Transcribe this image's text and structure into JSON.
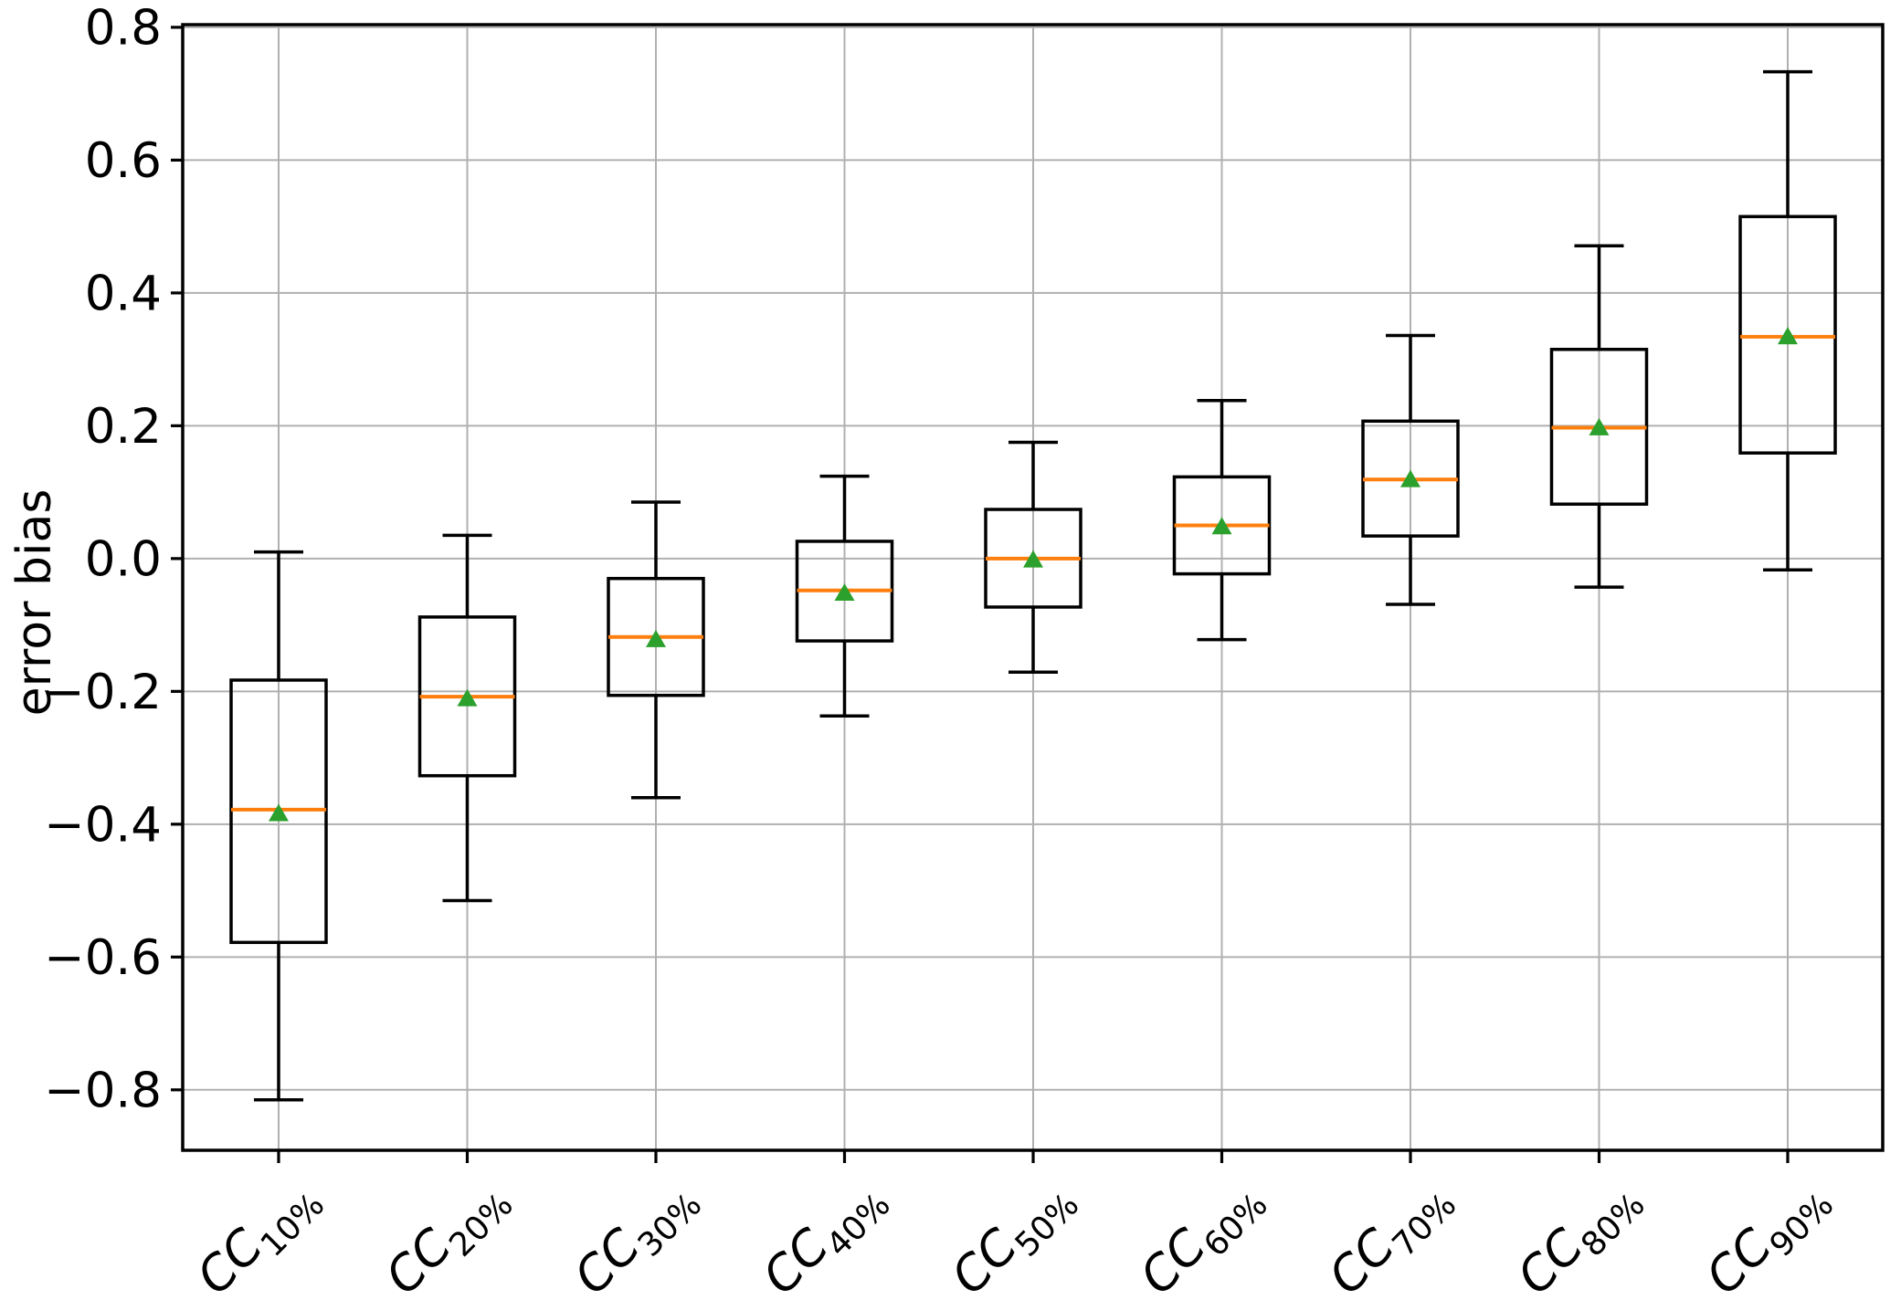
{
  "figure": {
    "background": "#ffffff"
  },
  "colors": {
    "box_edge": "#000000",
    "whisker": "#000000",
    "median_line": "#ff7f0e",
    "mean_marker": "#2ca02c",
    "grid_line": "#b0b0b0",
    "spine": "#000000",
    "tick_text": "#000000"
  },
  "chart_data": {
    "type": "boxplot",
    "title": "",
    "xlabel": "",
    "ylabel": "error bias",
    "grid": true,
    "legend": "none",
    "ylim": [
      -0.891,
      0.804
    ],
    "yticks": [
      0.8,
      0.6,
      0.4,
      0.2,
      0.0,
      -0.2,
      -0.4,
      -0.6,
      -0.8
    ],
    "ytick_labels": [
      "0.8",
      "0.6",
      "0.4",
      "0.2",
      "0.0",
      "−0.2",
      "−0.4",
      "−0.6",
      "−0.8"
    ],
    "categories": [
      "CC10%",
      "CC20%",
      "CC30%",
      "CC40%",
      "CC50%",
      "CC60%",
      "CC70%",
      "CC80%",
      "CC90%"
    ],
    "category_labels": [
      {
        "prefix": "CC",
        "subscript": "10%"
      },
      {
        "prefix": "CC",
        "subscript": "20%"
      },
      {
        "prefix": "CC",
        "subscript": "30%"
      },
      {
        "prefix": "CC",
        "subscript": "40%"
      },
      {
        "prefix": "CC",
        "subscript": "50%"
      },
      {
        "prefix": "CC",
        "subscript": "60%"
      },
      {
        "prefix": "CC",
        "subscript": "70%"
      },
      {
        "prefix": "CC",
        "subscript": "80%"
      },
      {
        "prefix": "CC",
        "subscript": "90%"
      }
    ],
    "boxes": [
      {
        "label": "CC10%",
        "whisker_low": -0.815,
        "q1": -0.578,
        "median": -0.378,
        "mean": -0.383,
        "q3": -0.183,
        "whisker_high": 0.01
      },
      {
        "label": "CC20%",
        "whisker_low": -0.515,
        "q1": -0.327,
        "median": -0.208,
        "mean": -0.21,
        "q3": -0.088,
        "whisker_high": 0.035
      },
      {
        "label": "CC30%",
        "whisker_low": -0.36,
        "q1": -0.206,
        "median": -0.118,
        "mean": -0.121,
        "q3": -0.03,
        "whisker_high": 0.085
      },
      {
        "label": "CC40%",
        "whisker_low": -0.237,
        "q1": -0.124,
        "median": -0.048,
        "mean": -0.051,
        "q3": 0.026,
        "whisker_high": 0.124
      },
      {
        "label": "CC50%",
        "whisker_low": -0.171,
        "q1": -0.073,
        "median": 0.0,
        "mean": -0.001,
        "q3": 0.074,
        "whisker_high": 0.175
      },
      {
        "label": "CC60%",
        "whisker_low": -0.122,
        "q1": -0.023,
        "median": 0.05,
        "mean": 0.049,
        "q3": 0.123,
        "whisker_high": 0.238
      },
      {
        "label": "CC70%",
        "whisker_low": -0.069,
        "q1": 0.034,
        "median": 0.119,
        "mean": 0.12,
        "q3": 0.207,
        "whisker_high": 0.336
      },
      {
        "label": "CC80%",
        "whisker_low": -0.043,
        "q1": 0.082,
        "median": 0.197,
        "mean": 0.198,
        "q3": 0.315,
        "whisker_high": 0.471
      },
      {
        "label": "CC90%",
        "whisker_low": -0.017,
        "q1": 0.159,
        "median": 0.334,
        "mean": 0.335,
        "q3": 0.515,
        "whisker_high": 0.733
      }
    ]
  }
}
